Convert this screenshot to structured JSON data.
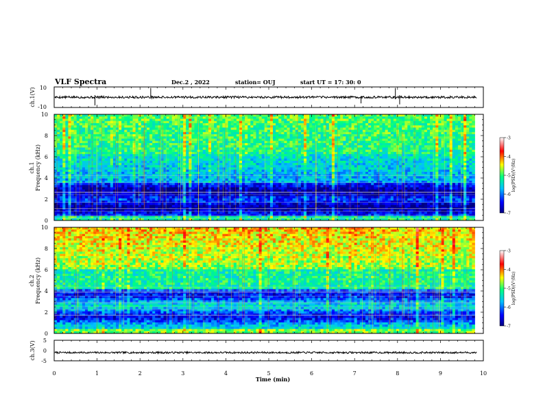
{
  "header": {
    "title": "VLF Spectra",
    "date": "Dec.2 , 2022",
    "station": "station= OUJ",
    "start": "start  UT =   17: 30: 0"
  },
  "chart_data": [
    {
      "type": "line",
      "name": "ch1-waveform",
      "ylabel": "ch.1(V)",
      "ylim": [
        -10,
        10
      ],
      "yticks": [
        "10",
        "-10"
      ],
      "xlim": [
        0,
        10
      ],
      "baseline": 0,
      "color": "#000000"
    },
    {
      "type": "heatmap",
      "name": "ch1-spectrogram",
      "ylabel_top": "ch.1",
      "ylabel": "Frequency  (kHz)",
      "ylim": [
        0,
        10
      ],
      "yticks": [
        "0",
        "2",
        "4",
        "6",
        "8",
        "10"
      ],
      "xlim": [
        0,
        10
      ],
      "data_xmax": 9.8,
      "colorbar": {
        "label": "log(PSD)(V²/Hz)",
        "range": [
          -7,
          -3
        ],
        "ticks": [
          "-3",
          "-4",
          "-5",
          "-6",
          "-7"
        ],
        "colors": [
          "#000080",
          "#0000ff",
          "#00bfff",
          "#00ff80",
          "#ffff00",
          "#ff0000",
          "#ffffff"
        ]
      }
    },
    {
      "type": "heatmap",
      "name": "ch2-spectrogram",
      "ylabel_top": "ch.2",
      "ylabel": "Frequency  (kHz)",
      "ylim": [
        0,
        10
      ],
      "yticks": [
        "0",
        "2",
        "4",
        "6",
        "8",
        "10"
      ],
      "xlim": [
        0,
        10
      ],
      "data_xmax": 9.8,
      "colorbar": {
        "label": "log(PSD)(V²/Hz)",
        "range": [
          -7,
          -3
        ],
        "ticks": [
          "-3",
          "-4",
          "-5",
          "-6",
          "-7"
        ],
        "colors": [
          "#000080",
          "#0000ff",
          "#00bfff",
          "#00ff80",
          "#ffff00",
          "#ff0000",
          "#ffffff"
        ]
      }
    },
    {
      "type": "line",
      "name": "ch3-waveform",
      "ylabel": "ch.3(V)",
      "ylim": [
        -5,
        5
      ],
      "yticks": [
        "5",
        "0",
        "-5"
      ],
      "xlim": [
        0,
        10
      ],
      "baseline": -1,
      "color": "#000000"
    }
  ],
  "xaxis": {
    "label": "Time  (min)",
    "ticks": [
      "0",
      "1",
      "2",
      "3",
      "4",
      "5",
      "6",
      "7",
      "8",
      "9",
      "10"
    ],
    "range": [
      0,
      10
    ]
  }
}
